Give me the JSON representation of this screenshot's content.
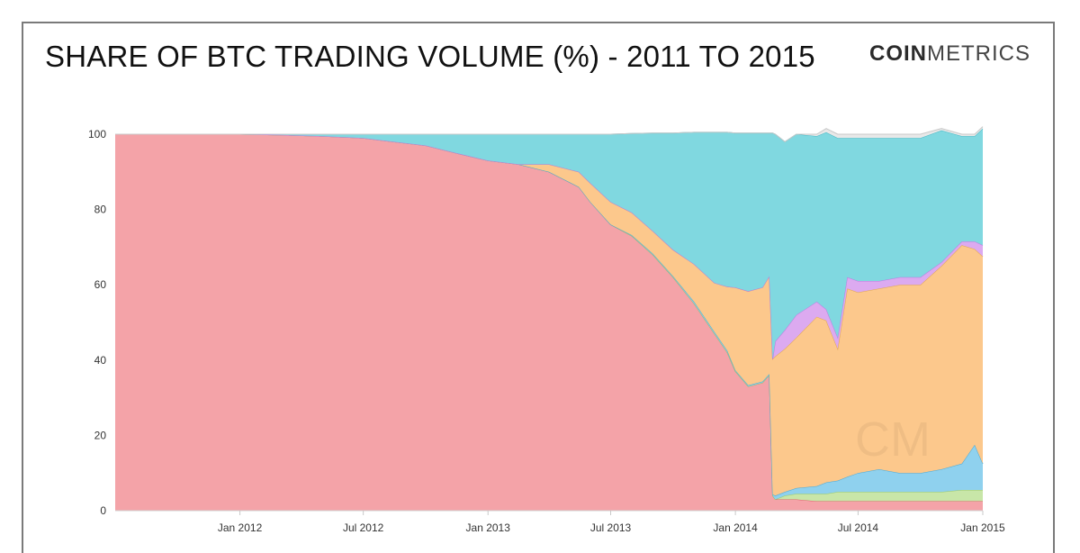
{
  "header": {
    "title": "SHARE OF BTC TRADING VOLUME (%) - 2011 TO 2015",
    "logo_bold": "COIN",
    "logo_light": "METRICS",
    "watermark": "CM"
  },
  "chart_data": {
    "type": "area",
    "stacked": true,
    "title": "SHARE OF BTC TRADING VOLUME (%) - 2011 TO 2015",
    "xlabel": "",
    "ylabel": "",
    "ylim": [
      0,
      100
    ],
    "yticks": [
      0,
      20,
      40,
      60,
      80,
      100
    ],
    "xlim": [
      "2011-07-01",
      "2015-01-01"
    ],
    "xticks": [
      {
        "date": "2012-01-01",
        "label": "Jan 2012"
      },
      {
        "date": "2012-07-01",
        "label": "Jul 2012"
      },
      {
        "date": "2013-01-01",
        "label": "Jan 2013"
      },
      {
        "date": "2013-07-01",
        "label": "Jul 2013"
      },
      {
        "date": "2014-01-01",
        "label": "Jan 2014"
      },
      {
        "date": "2014-07-01",
        "label": "Jul 2014"
      },
      {
        "date": "2015-01-01",
        "label": "Jan 2015"
      }
    ],
    "grid": false,
    "legend": "none",
    "x": [
      "2011-07-01",
      "2011-10-01",
      "2012-01-01",
      "2012-03-01",
      "2012-05-01",
      "2012-07-01",
      "2012-08-15",
      "2012-10-01",
      "2012-11-15",
      "2013-01-01",
      "2013-02-15",
      "2013-04-01",
      "2013-05-15",
      "2013-06-01",
      "2013-07-01",
      "2013-08-01",
      "2013-09-01",
      "2013-10-01",
      "2013-11-01",
      "2013-12-01",
      "2013-12-20",
      "2014-01-01",
      "2014-01-20",
      "2014-02-10",
      "2014-02-20",
      "2014-02-25",
      "2014-03-01",
      "2014-03-15",
      "2014-04-01",
      "2014-05-01",
      "2014-05-15",
      "2014-06-01",
      "2014-06-15",
      "2014-07-01",
      "2014-08-01",
      "2014-09-01",
      "2014-10-01",
      "2014-11-01",
      "2014-12-01",
      "2014-12-20",
      "2015-01-01"
    ],
    "series": [
      {
        "color": "#f4a3a8",
        "stroke": "#e0606c",
        "values": [
          100,
          100,
          100,
          99.8,
          99.5,
          99,
          98,
          97,
          95,
          93,
          92,
          90,
          86,
          82,
          76,
          73,
          68,
          62,
          55,
          47,
          42,
          37,
          33,
          34,
          36,
          4,
          3,
          3,
          3,
          2.5,
          2.5,
          2.5,
          2.5,
          2.5,
          2.5,
          2.5,
          2.5,
          2.5,
          2.5,
          2.5,
          2.5
        ]
      },
      {
        "color": "#c8e6a8",
        "stroke": "#9bc96a",
        "values": [
          0,
          0,
          0,
          0,
          0,
          0,
          0,
          0,
          0,
          0,
          0,
          0,
          0,
          0,
          0,
          0,
          0,
          0,
          0,
          0,
          0,
          0,
          0,
          0,
          0,
          0,
          0,
          1,
          1.5,
          2,
          2,
          2.5,
          2.5,
          2.5,
          2.5,
          2.5,
          2.5,
          2.5,
          3,
          3,
          3
        ]
      },
      {
        "color": "#8fd1ee",
        "stroke": "#4ba9d6",
        "values": [
          0,
          0,
          0,
          0,
          0,
          0,
          0,
          0,
          0,
          0,
          0,
          0,
          0,
          0,
          0,
          0.2,
          0.3,
          0.3,
          0.5,
          0.5,
          0.5,
          0.3,
          0.3,
          0.3,
          0.3,
          0.3,
          1,
          1,
          1.5,
          2,
          3,
          3,
          4,
          5,
          6,
          5,
          5,
          6,
          7,
          12,
          7
        ]
      },
      {
        "color": "#fcc88c",
        "stroke": "#e0a84e",
        "values": [
          0,
          0,
          0,
          0,
          0,
          0,
          0,
          0,
          0,
          0,
          0,
          2,
          4,
          5,
          6,
          6,
          6,
          7,
          10,
          13,
          17,
          22,
          25,
          25,
          26,
          36,
          37,
          38,
          40,
          45,
          43,
          35,
          50,
          48,
          48,
          50,
          50,
          54,
          58,
          52,
          55
        ]
      },
      {
        "color": "#dcaaf0",
        "stroke": "#b77de0",
        "values": [
          0,
          0,
          0,
          0,
          0,
          0,
          0,
          0,
          0,
          0,
          0,
          0,
          0,
          0,
          0,
          0,
          0,
          0,
          0,
          0,
          0,
          0,
          0,
          0,
          0,
          0,
          4,
          5,
          6,
          4,
          3,
          3,
          3,
          3,
          2,
          2,
          2,
          1,
          1,
          2,
          3
        ]
      },
      {
        "color": "#80d8e0",
        "stroke": "#41b8c6",
        "values": [
          0,
          0,
          0,
          0.2,
          0.5,
          1,
          2,
          3,
          5,
          7,
          8,
          8,
          10,
          13,
          18,
          21,
          26,
          31,
          35,
          40,
          41,
          41,
          42,
          41,
          38,
          60,
          55,
          50,
          48,
          44,
          47,
          53,
          37,
          38,
          38,
          37,
          37,
          35,
          28,
          28,
          31
        ]
      },
      {
        "color": "#e8e8e8",
        "stroke": "#c8c8c8",
        "values": [
          0,
          0,
          0,
          0,
          0,
          0,
          0,
          0,
          0,
          0,
          0,
          0,
          0,
          0,
          0,
          0,
          0,
          0,
          0,
          0,
          0,
          0,
          0,
          0,
          0,
          0,
          0,
          0,
          0,
          0.5,
          1,
          1,
          1,
          1,
          1,
          1,
          1,
          0.5,
          0.5,
          0.5,
          0.5
        ]
      }
    ]
  }
}
